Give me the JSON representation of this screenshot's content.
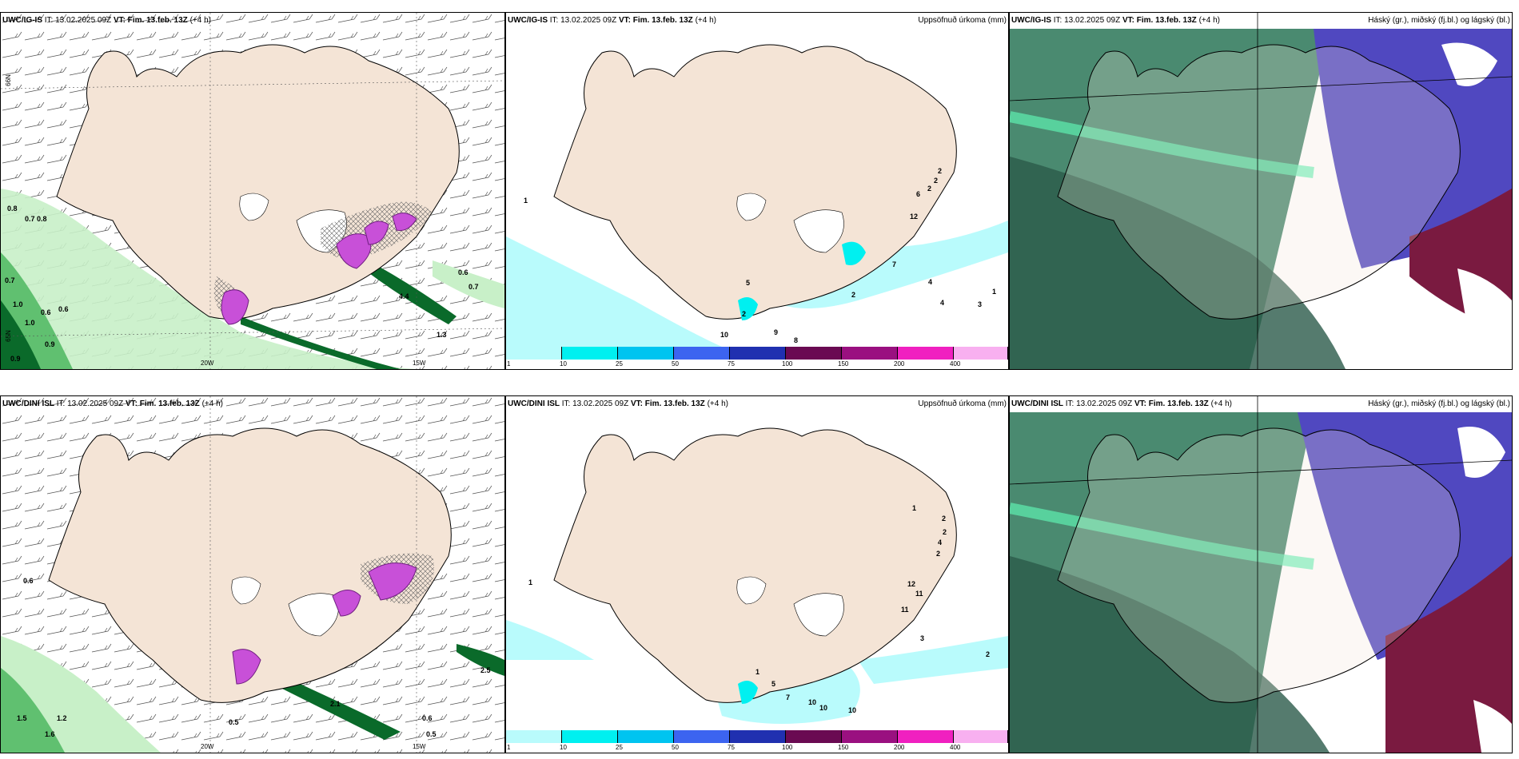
{
  "panels": [
    {
      "model": "UWC/IG-IS",
      "it_label": "IT:",
      "it": "13.02.2025 09Z",
      "vt_label": "VT:",
      "vt": "Fim. 13.feb. 13Z",
      "lead": "(+4 h)",
      "right_title": ""
    },
    {
      "model": "UWC/IG-IS",
      "it_label": "IT:",
      "it": "13.02.2025 09Z",
      "vt_label": "VT:",
      "vt": "Fim. 13.feb. 13Z",
      "lead": "(+4 h)",
      "right_title": "Uppsöfnuð úrkoma (mm)"
    },
    {
      "model": "UWC/IG-IS",
      "it_label": "IT:",
      "it": "13.02.2025 09Z",
      "vt_label": "VT:",
      "vt": "Fim. 13.feb. 13Z",
      "lead": "(+4 h)",
      "right_title": "Háský (gr.), miðský (fj.bl.) og lágský (bl.)"
    },
    {
      "model": "UWC/DINI ISL",
      "it_label": "IT:",
      "it": "13.02.2025 09Z",
      "vt_label": "VT:",
      "vt": "Fim. 13.feb. 13Z",
      "lead": "(+4 h)",
      "right_title": ""
    },
    {
      "model": "UWC/DINI ISL",
      "it_label": "IT:",
      "it": "13.02.2025 09Z",
      "vt_label": "VT:",
      "vt": "Fim. 13.feb. 13Z",
      "lead": "(+4 h)",
      "right_title": "Uppsöfnuð úrkoma (mm)"
    },
    {
      "model": "UWC/DINI ISL",
      "it_label": "IT:",
      "it": "13.02.2025 09Z",
      "vt_label": "VT:",
      "vt": "Fim. 13.feb. 13Z",
      "lead": "(+4 h)",
      "right_title": "Háský (gr.), miðský (fj.bl.) og lágský (bl.)"
    }
  ],
  "axis_ticks": {
    "lon1": "20W",
    "lon2": "15W",
    "lat1": "66N",
    "lat2": "65N"
  },
  "colorbar": {
    "labels": [
      "1",
      "10",
      "25",
      "50",
      "75",
      "100",
      "150",
      "200",
      "400"
    ],
    "colors": [
      "#b9fbfc",
      "#00f0f0",
      "#00c4f0",
      "#3c64f0",
      "#2030b0",
      "#6a0a52",
      "#9a1080",
      "#f020c0",
      "#f8b0f0"
    ]
  },
  "colors": {
    "land": "#f4e4d6",
    "green1": "#c8f0c8",
    "green2": "#60c070",
    "green3": "#0a6a2a",
    "purple": "#c850d8",
    "cyan": "#b9fbfc",
    "cloud_high": "#4a8a70",
    "cloud_mid": "#5048c0",
    "cloud_low": "#7a1a40"
  },
  "labels_p1": [
    "0.8",
    "0.8",
    "0.7",
    "0.7",
    "1.0",
    "0.6",
    "1.0",
    "0.9",
    "0.9",
    "0.6",
    "0.7",
    "1.3",
    "4.4",
    "0.6"
  ],
  "labels_p2": [
    "1",
    "5",
    "2",
    "10",
    "9",
    "8",
    "7",
    "2",
    "4",
    "4",
    "3",
    "1",
    "12",
    "6",
    "2",
    "2",
    "2"
  ],
  "labels_p4": [
    "0.6",
    "0.5",
    "0.5",
    "0.6",
    "1.6",
    "1.5",
    "1.2",
    "2.1",
    "2.5"
  ],
  "labels_p5": [
    "1",
    "2",
    "2",
    "4",
    "2",
    "1",
    "12",
    "11",
    "11",
    "5",
    "7",
    "10",
    "10",
    "10",
    "3",
    "2",
    "1"
  ]
}
